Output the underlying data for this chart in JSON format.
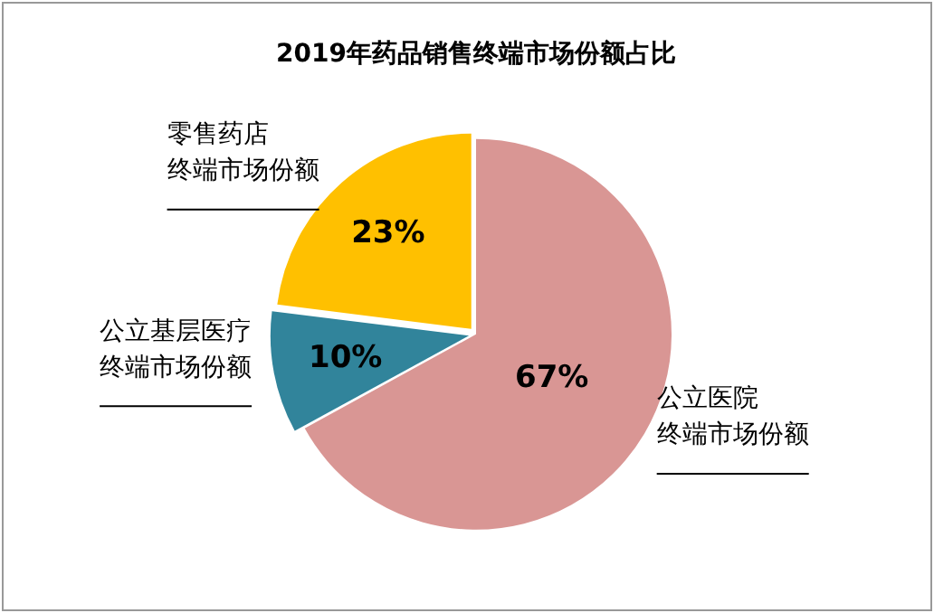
{
  "chart_data": {
    "type": "pie",
    "title": "2019年药品销售终端市场份额占比",
    "categories": [
      "公立医院终端市场份额",
      "公立基层医疗终端市场份额",
      "零售药店终端市场份额"
    ],
    "values": [
      67,
      10,
      23
    ],
    "colors": [
      "#d99694",
      "#31849b",
      "#ffc000"
    ],
    "value_labels": [
      "67%",
      "10%",
      "23%"
    ],
    "legend": false
  }
}
